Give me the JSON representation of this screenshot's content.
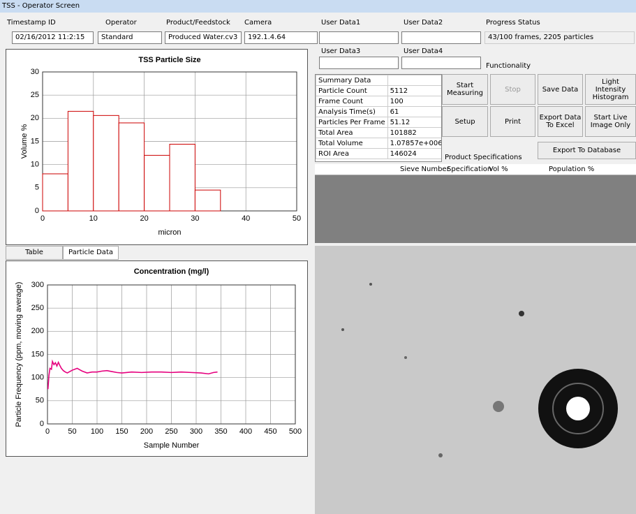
{
  "window": {
    "title": "TSS - Operator Screen"
  },
  "fields": {
    "timestamp": {
      "label": "Timestamp ID",
      "value": "02/16/2012 11:2:15"
    },
    "operator": {
      "label": "Operator",
      "value": "Standard"
    },
    "product": {
      "label": "Product/Feedstock",
      "value": "Produced Water.cv3"
    },
    "camera": {
      "label": "Camera",
      "value": "192.1.4.64"
    },
    "user1": {
      "label": "User Data1"
    },
    "user2": {
      "label": "User Data2"
    },
    "user3": {
      "label": "User Data3"
    },
    "user4": {
      "label": "User Data4"
    },
    "progress": {
      "label": "Progress Status",
      "value": "43/100 frames, 2205 particles"
    },
    "functionality": {
      "label": "Functionality"
    }
  },
  "summary": {
    "header": "Summary Data",
    "rows": [
      [
        "Particle Count",
        "5112"
      ],
      [
        "Frame Count",
        "100"
      ],
      [
        "Analysis Time(s)",
        "61"
      ],
      [
        "Particles Per Frame",
        "51.12"
      ],
      [
        "Total Area",
        "101882"
      ],
      [
        "Total Volume",
        "1.07857e+006"
      ],
      [
        "ROI Area",
        "146024"
      ]
    ]
  },
  "buttons": [
    "Start Measuring",
    "Stop",
    "Save Data",
    "Light Intensity Histogram",
    "Setup",
    "Print",
    "Export Data To Excel",
    "Start Live Image Only",
    "Export To Database"
  ],
  "specs": {
    "title": "Product Specifications",
    "columns": [
      "Sieve Number",
      "Specification",
      "Vol %",
      "Population %"
    ]
  },
  "tabs": [
    "Table",
    "Particle Data"
  ],
  "chart_data": [
    {
      "type": "histogram",
      "title": "TSS Particle Size",
      "x_label": "micron",
      "y_label": "Volume %",
      "bins": [
        0,
        5,
        10,
        15,
        20,
        25,
        30,
        35
      ],
      "values": [
        8,
        21.5,
        20.6,
        19,
        12,
        14.4,
        4.5
      ],
      "color": "#cc0000",
      "xlim": [
        0,
        50
      ],
      "xticks": [
        0,
        10,
        20,
        30,
        40,
        50
      ],
      "ylim": [
        0,
        30
      ],
      "yticks": [
        0,
        5,
        10,
        15,
        20,
        25,
        30
      ],
      "grid": true
    },
    {
      "type": "line",
      "title": "Concentration (mg/l)",
      "x_label": "Sample Number",
      "y_label": "Particle Frequency (ppm, moving average)",
      "x": [
        1,
        3,
        5,
        8,
        10,
        13,
        16,
        19,
        22,
        25,
        28,
        32,
        36,
        40,
        45,
        50,
        55,
        60,
        65,
        70,
        80,
        90,
        100,
        110,
        120,
        130,
        140,
        150,
        170,
        190,
        210,
        230,
        250,
        270,
        290,
        310,
        325,
        335,
        343
      ],
      "values": [
        75,
        105,
        120,
        118,
        135,
        128,
        132,
        125,
        133,
        126,
        120,
        115,
        112,
        110,
        113,
        116,
        118,
        120,
        117,
        114,
        110,
        112,
        112,
        114,
        115,
        113,
        111,
        110,
        112,
        111,
        112,
        112,
        111,
        112,
        111,
        110,
        108,
        111,
        112
      ],
      "color": "#e6007e",
      "xlim": [
        0,
        500
      ],
      "xticks": [
        0,
        50,
        100,
        150,
        200,
        250,
        300,
        350,
        400,
        450,
        500
      ],
      "ylim": [
        0,
        300
      ],
      "yticks": [
        0,
        50,
        100,
        150,
        200,
        250,
        300
      ],
      "grid": true
    }
  ]
}
